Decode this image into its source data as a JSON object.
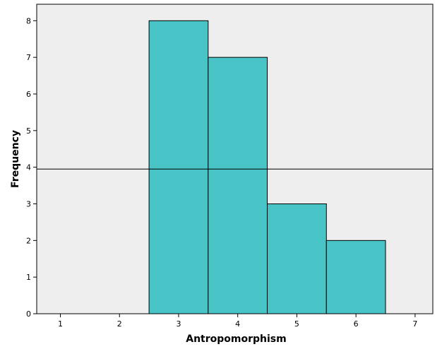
{
  "chart_data": {
    "type": "bar",
    "subtype": "histogram",
    "xlabel": "Antropomorphism",
    "ylabel": "Frequency",
    "bins": [
      {
        "x0": 2.5,
        "x1": 3.5,
        "value": 8
      },
      {
        "x0": 3.5,
        "x1": 4.5,
        "value": 7
      },
      {
        "x0": 4.5,
        "x1": 5.5,
        "value": 3
      },
      {
        "x0": 5.5,
        "x1": 6.5,
        "value": 2
      }
    ],
    "xlim": [
      0.6,
      7.3
    ],
    "ylim": [
      0,
      8.45
    ],
    "xticks": [
      "1",
      "2",
      "3",
      "4",
      "5",
      "6",
      "7"
    ],
    "yticks": [
      "0",
      "1",
      "2",
      "3",
      "4",
      "5",
      "6",
      "7",
      "8"
    ],
    "reference_line_y": 3.95,
    "grid": false,
    "colors": {
      "bar_fill": "#48C4C6",
      "bar_stroke": "#000000",
      "plot_background": "#EEEEEE",
      "page_background": "#FFFFFF"
    }
  }
}
